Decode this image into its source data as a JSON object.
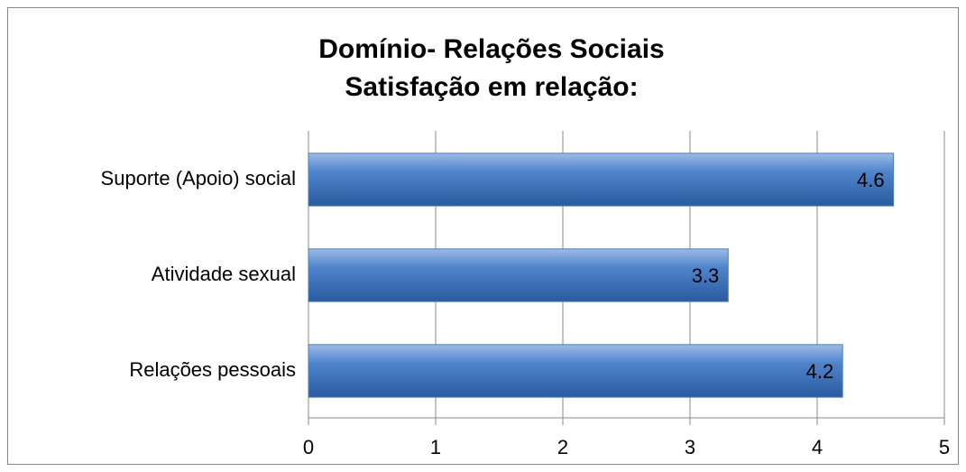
{
  "chart_data": {
    "type": "bar",
    "orientation": "horizontal",
    "title": [
      "Domínio- Relações Sociais",
      "Satisfação em relação:"
    ],
    "categories": [
      "Suporte (Apoio) social",
      "Atividade sexual",
      "Relações pessoais"
    ],
    "values": [
      4.6,
      3.3,
      4.2
    ],
    "color": "#4a7ebb",
    "xlim": [
      0,
      5
    ],
    "xticks": [
      0,
      1,
      2,
      3,
      4,
      5
    ],
    "grid": true
  }
}
